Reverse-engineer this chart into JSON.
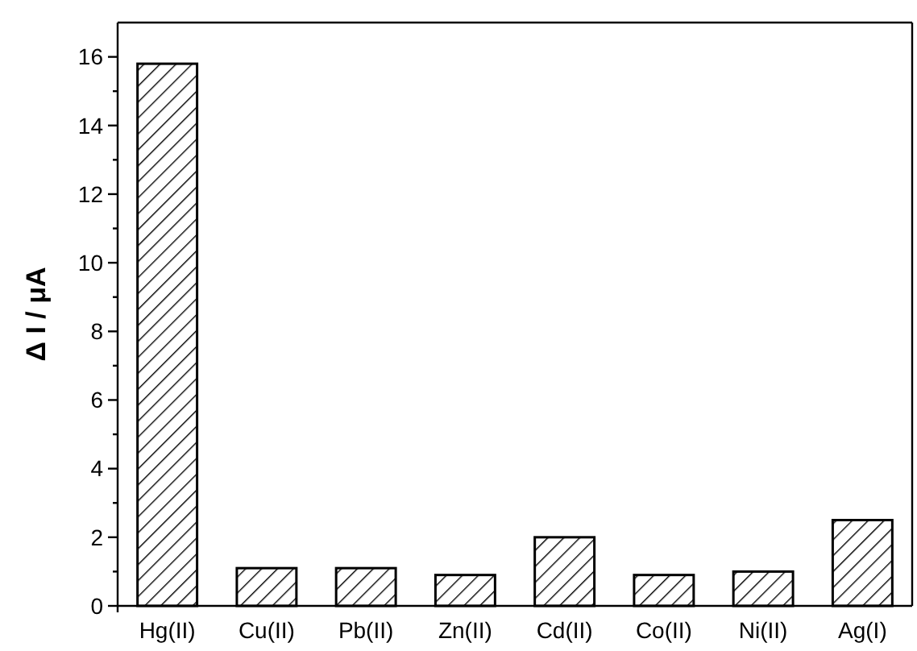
{
  "chart_data": {
    "type": "bar",
    "ylabel": "Δ I / μA",
    "categories": [
      "Hg(II)",
      "Cu(II)",
      "Pb(II)",
      "Zn(II)",
      "Cd(II)",
      "Co(II)",
      "Ni(II)",
      "Ag(I)"
    ],
    "values": [
      15.8,
      1.1,
      1.1,
      0.9,
      2.0,
      0.9,
      1.0,
      2.5
    ],
    "color": "#000000",
    "ylim": [
      0,
      17
    ],
    "yticks": [
      0,
      {
        "value": 1,
        "label": null
      },
      2,
      {
        "value": 3,
        "label": null
      },
      4,
      {
        "value": 5,
        "label": null
      },
      6,
      {
        "value": 7,
        "label": null
      },
      8,
      {
        "value": 9,
        "label": null
      },
      10,
      {
        "value": 11,
        "label": null
      },
      12,
      {
        "value": 13,
        "label": null
      },
      14,
      {
        "value": 15,
        "label": null
      },
      16
    ],
    "grid": false
  }
}
